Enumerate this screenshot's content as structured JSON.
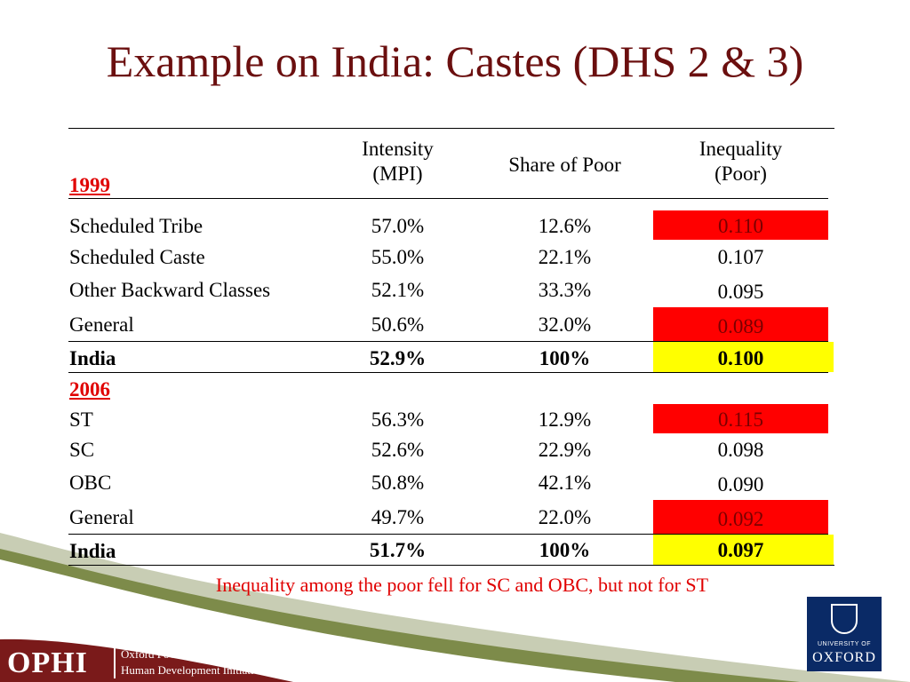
{
  "title": "Example on India: Castes (DHS 2 & 3)",
  "headers": {
    "intensity_line1": "Intensity",
    "intensity_line2": "(MPI)",
    "share": "Share of Poor",
    "inequality_line1": "Inequality",
    "inequality_line2": "(Poor)"
  },
  "year1": "1999",
  "rows1999": [
    {
      "group": "Scheduled Tribe",
      "mpi": "57.0%",
      "share": "12.6%",
      "ineq": "0.110"
    },
    {
      "group": "Scheduled Caste",
      "mpi": "55.0%",
      "share": "22.1%",
      "ineq": "0.107"
    },
    {
      "group": "Other Backward Classes",
      "mpi": "52.1%",
      "share": "33.3%",
      "ineq": "0.095"
    },
    {
      "group": "General",
      "mpi": "50.6%",
      "share": "32.0%",
      "ineq": "0.089"
    }
  ],
  "total1999": {
    "group": "India",
    "mpi": "52.9%",
    "share": "100%",
    "ineq": "0.100"
  },
  "year2": "2006",
  "rows2006": [
    {
      "group": "ST",
      "mpi": "56.3%",
      "share": "12.9%",
      "ineq": "0.115"
    },
    {
      "group": "SC",
      "mpi": "52.6%",
      "share": "22.9%",
      "ineq": "0.098"
    },
    {
      "group": "OBC",
      "mpi": "50.8%",
      "share": "42.1%",
      "ineq": "0.090"
    },
    {
      "group": "General",
      "mpi": "49.7%",
      "share": "22.0%",
      "ineq": "0.092"
    }
  ],
  "total2006": {
    "group": "India",
    "mpi": "51.7%",
    "share": "100%",
    "ineq": "0.097"
  },
  "note": "Inequality among the poor fell for SC and OBC, but not for ST",
  "footer": {
    "ophi": "OPHI",
    "ophi_line1": "Oxford Poverty &",
    "ophi_line2": "Human Development Initiative",
    "oxford_line1": "UNIVERSITY OF",
    "oxford_line2": "OXFORD"
  },
  "colors": {
    "title": "#6b0f0f",
    "highlight_red": "#ff0000",
    "highlight_yellow": "#ffff00",
    "note": "#e00000",
    "brand_maroon": "#7a1a1a",
    "brand_green": "#7d8b4a",
    "oxford_blue": "#0a2a66"
  }
}
